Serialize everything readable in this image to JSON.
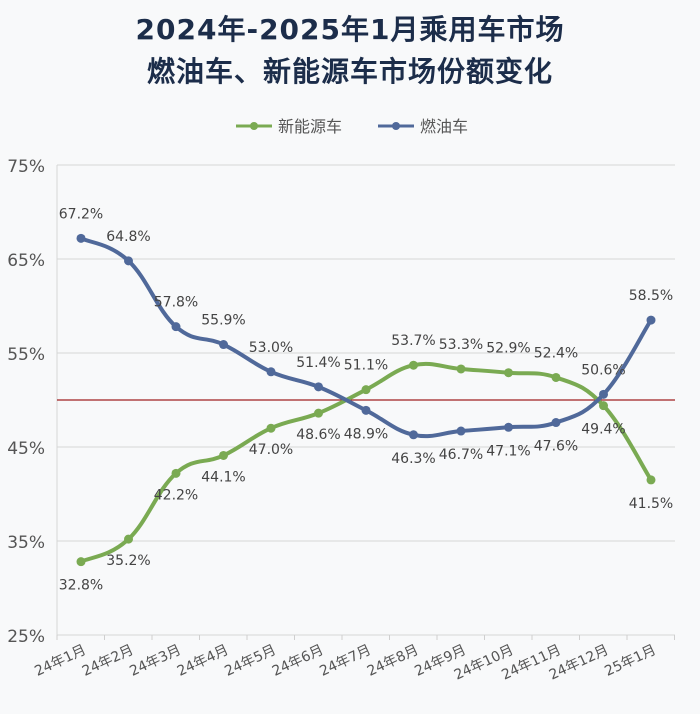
{
  "chart_data": {
    "type": "line",
    "title": "2024年-2025年1月乘用车市场",
    "subtitle": "燃油车、新能源车市场份额变化",
    "xlabel": "",
    "ylabel": "",
    "categories": [
      "24年1月",
      "24年2月",
      "24年3月",
      "24年4月",
      "24年5月",
      "24年6月",
      "24年7月",
      "24年8月",
      "24年9月",
      "24年10月",
      "24年11月",
      "24年12月",
      "25年1月"
    ],
    "series": [
      {
        "name": "新能源车",
        "color": "#7aaa52",
        "values": [
          32.8,
          35.2,
          42.2,
          44.1,
          47.0,
          48.6,
          51.1,
          53.7,
          53.3,
          52.9,
          52.4,
          49.4,
          41.5
        ],
        "labels": [
          "32.8%",
          "35.2%",
          "42.2%",
          "44.1%",
          "47.0%",
          "48.6%",
          "51.1%",
          "53.7%",
          "53.3%",
          "52.9%",
          "52.4%",
          "49.4%",
          "41.5%"
        ]
      },
      {
        "name": "燃油车",
        "color": "#50699a",
        "values": [
          67.2,
          64.8,
          57.8,
          55.9,
          53.0,
          51.4,
          48.9,
          46.3,
          46.7,
          47.1,
          47.6,
          50.6,
          58.5
        ],
        "labels": [
          "67.2%",
          "64.8%",
          "57.8%",
          "55.9%",
          "53.0%",
          "51.4%",
          "48.9%",
          "46.3%",
          "46.7%",
          "47.1%",
          "47.6%",
          "50.6%",
          "58.5%"
        ]
      }
    ],
    "ylim": [
      25,
      75
    ],
    "yticks": [
      75,
      65,
      55,
      45,
      35,
      25
    ],
    "ytick_labels": [
      "75%",
      "65%",
      "55%",
      "45%",
      "35%",
      "25%"
    ],
    "reference_line": {
      "value": 50,
      "color": "#a02020"
    },
    "grid": true,
    "legend": "top-center"
  }
}
